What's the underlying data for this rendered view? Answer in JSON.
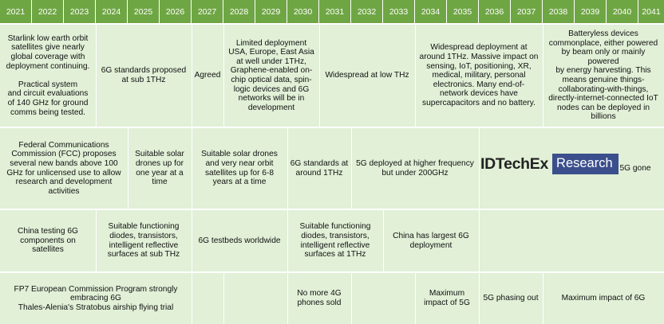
{
  "years": [
    "2021",
    "2022",
    "2023",
    "2024",
    "2025",
    "2026",
    "2027",
    "2028",
    "2029",
    "2030",
    "2031",
    "2032",
    "2033",
    "2034",
    "2035",
    "2036",
    "2037",
    "2038",
    "2039",
    "2040",
    "2041"
  ],
  "colors": {
    "year_header_bg": "#6fa644",
    "row_bg": "#e1f0d7",
    "logo_box": "#3b4f8c"
  },
  "rows": [
    [
      {
        "lines": [
          "Starlink low earth orbit",
          "satellites give nearly",
          "global coverage with",
          "deployment continuing.",
          "",
          "Practical system",
          "and circuit evaluations",
          "of  140 GHz for ground",
          "comms being tested."
        ]
      },
      {
        "lines": [
          "6G standards proposed",
          "at sub 1THz"
        ]
      },
      {
        "lines": [
          "Agreed"
        ]
      },
      {
        "lines": [
          "Limited deployment",
          "USA, Europe, East Asia",
          "at well under 1THz,",
          "Graphene-enabled on-",
          "chip optical data, spin-",
          "logic devices and 6G",
          "networks will be in",
          "development"
        ]
      },
      {
        "lines": [
          "Widespread at low THz"
        ]
      },
      {
        "lines": [
          "Widespread deployment at",
          "around 1THz. Massive impact on",
          "sensing, IoT, positioning, XR,",
          "medical, military, personal",
          "electronics. Many end-of-",
          "network devices have",
          "supercapacitors and no battery."
        ]
      },
      {
        "lines": [
          "Batteryless devices",
          "commonplace, either powered",
          "by beam only or mainly powered",
          "by energy harvesting. This",
          "means genuine things-",
          "collaborating-with-things,",
          "directly-internet-connected IoT",
          "nodes can be deployed in",
          "billions"
        ]
      }
    ],
    [
      {
        "lines": [
          "Federal Communications",
          "Commission (FCC) proposes",
          "several new bands above 100",
          "GHz for unlicensed use to allow",
          "research and development",
          "activities"
        ]
      },
      {
        "lines": [
          "Suitable solar",
          "drones up for",
          "one year at a",
          "time"
        ]
      },
      {
        "lines": [
          "Suitable solar drones",
          "and very near orbit",
          "satellites up for 6-8",
          "years at a time"
        ]
      },
      {
        "lines": [
          "6G standards at",
          "around 1THz"
        ]
      },
      {
        "lines": [
          "5G deployed at higher frequency",
          "but under 200GHz"
        ]
      },
      {
        "lines": [
          "5G gone"
        ]
      }
    ],
    [
      {
        "lines": [
          "China testing 6G",
          "components on",
          "satellites"
        ]
      },
      {
        "lines": [
          "Suitable functioning",
          "diodes, transistors,",
          "intelligent reflective",
          "surfaces at sub THz"
        ]
      },
      {
        "lines": [
          "6G testbeds worldwide"
        ]
      },
      {
        "lines": [
          "Suitable functioning",
          "diodes, transistors,",
          "intelligent reflective",
          "surfaces at 1THz"
        ]
      },
      {
        "lines": [
          "China has largest 6G",
          "deployment"
        ]
      }
    ],
    [
      {
        "lines": [
          "FP7 European Commission Program strongly",
          "embracing 6G",
          "Thales-Alenia's Stratobus airship flying trial"
        ]
      },
      {
        "lines": [
          "No more 4G",
          "phones sold"
        ]
      },
      {
        "lines": [
          "Maximum",
          "impact of 5G"
        ]
      },
      {
        "lines": [
          "5G phasing out"
        ]
      },
      {
        "lines": [
          "Maximum impact of 6G"
        ]
      }
    ]
  ],
  "logo": {
    "wordmark": "IDTechEx",
    "box_text": "Research"
  }
}
